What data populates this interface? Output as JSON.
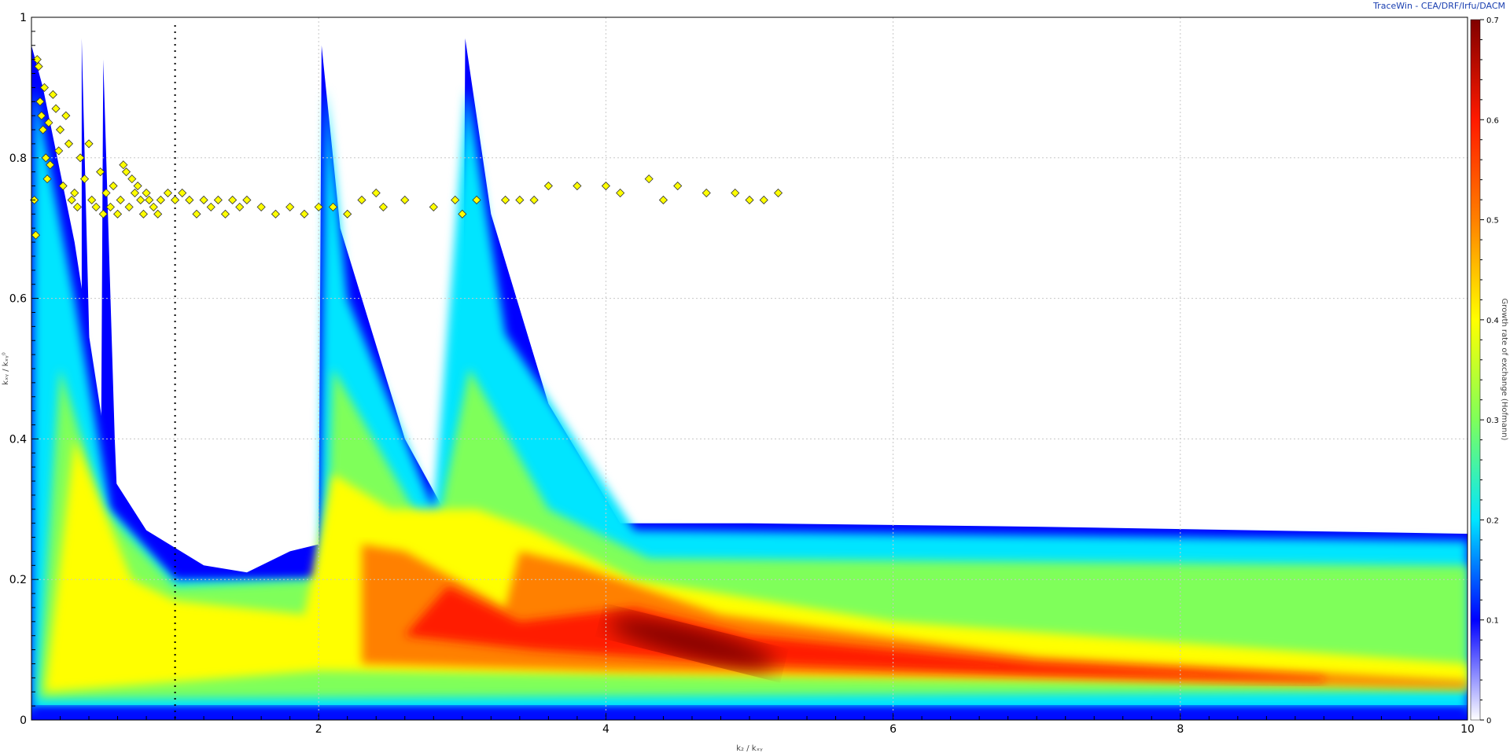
{
  "credit": "TraceWin - CEA/DRF/Irfu/DACM",
  "chart_data": {
    "type": "heatmap",
    "title": "",
    "xlabel": "k₂ / kₓᵧ",
    "ylabel": "kₓᵧ / kₓᵧ⁰",
    "colorbar_label": "Growth rate of exchange (Hofmann)",
    "xlim": [
      0,
      10
    ],
    "ylim": [
      0,
      1
    ],
    "clim": [
      0,
      0.7
    ],
    "x_ticks": [
      "2",
      "4",
      "6",
      "8",
      "10"
    ],
    "y_ticks": [
      "0",
      "0.2",
      "0.4",
      "0.6",
      "0.8",
      "1"
    ],
    "colorbar_ticks": [
      "0",
      "0.1",
      "0.2",
      "0.3",
      "0.4",
      "0.5",
      "0.6",
      "0.7"
    ],
    "grid": true,
    "colormap": [
      "#ffffff",
      "#0000ff",
      "#00e5ff",
      "#7fff5a",
      "#ffff00",
      "#ff8000",
      "#ff1a00",
      "#800000"
    ],
    "reference_line_x": 1.0,
    "markers": {
      "color": "#ffff00",
      "shape": "diamond",
      "points": [
        [
          0.02,
          0.74
        ],
        [
          0.03,
          0.69
        ],
        [
          0.04,
          0.94
        ],
        [
          0.05,
          0.93
        ],
        [
          0.06,
          0.88
        ],
        [
          0.07,
          0.86
        ],
        [
          0.08,
          0.84
        ],
        [
          0.09,
          0.9
        ],
        [
          0.1,
          0.8
        ],
        [
          0.11,
          0.77
        ],
        [
          0.12,
          0.85
        ],
        [
          0.13,
          0.79
        ],
        [
          0.15,
          0.89
        ],
        [
          0.17,
          0.87
        ],
        [
          0.19,
          0.81
        ],
        [
          0.2,
          0.84
        ],
        [
          0.22,
          0.76
        ],
        [
          0.24,
          0.86
        ],
        [
          0.26,
          0.82
        ],
        [
          0.28,
          0.74
        ],
        [
          0.3,
          0.75
        ],
        [
          0.32,
          0.73
        ],
        [
          0.34,
          0.8
        ],
        [
          0.37,
          0.77
        ],
        [
          0.4,
          0.82
        ],
        [
          0.42,
          0.74
        ],
        [
          0.45,
          0.73
        ],
        [
          0.48,
          0.78
        ],
        [
          0.5,
          0.72
        ],
        [
          0.52,
          0.75
        ],
        [
          0.55,
          0.73
        ],
        [
          0.57,
          0.76
        ],
        [
          0.6,
          0.72
        ],
        [
          0.62,
          0.74
        ],
        [
          0.64,
          0.79
        ],
        [
          0.66,
          0.78
        ],
        [
          0.68,
          0.73
        ],
        [
          0.7,
          0.77
        ],
        [
          0.72,
          0.75
        ],
        [
          0.74,
          0.76
        ],
        [
          0.76,
          0.74
        ],
        [
          0.78,
          0.72
        ],
        [
          0.8,
          0.75
        ],
        [
          0.82,
          0.74
        ],
        [
          0.85,
          0.73
        ],
        [
          0.88,
          0.72
        ],
        [
          0.9,
          0.74
        ],
        [
          0.95,
          0.75
        ],
        [
          1.0,
          0.74
        ],
        [
          1.05,
          0.75
        ],
        [
          1.1,
          0.74
        ],
        [
          1.15,
          0.72
        ],
        [
          1.2,
          0.74
        ],
        [
          1.25,
          0.73
        ],
        [
          1.3,
          0.74
        ],
        [
          1.35,
          0.72
        ],
        [
          1.4,
          0.74
        ],
        [
          1.45,
          0.73
        ],
        [
          1.5,
          0.74
        ],
        [
          1.6,
          0.73
        ],
        [
          1.7,
          0.72
        ],
        [
          1.8,
          0.73
        ],
        [
          1.9,
          0.72
        ],
        [
          2.0,
          0.73
        ],
        [
          2.1,
          0.73
        ],
        [
          2.2,
          0.72
        ],
        [
          2.3,
          0.74
        ],
        [
          2.4,
          0.75
        ],
        [
          2.45,
          0.73
        ],
        [
          2.6,
          0.74
        ],
        [
          2.8,
          0.73
        ],
        [
          2.95,
          0.74
        ],
        [
          3.0,
          0.72
        ],
        [
          3.1,
          0.74
        ],
        [
          3.3,
          0.74
        ],
        [
          3.4,
          0.74
        ],
        [
          3.5,
          0.74
        ],
        [
          3.6,
          0.76
        ],
        [
          3.8,
          0.76
        ],
        [
          4.0,
          0.76
        ],
        [
          4.1,
          0.75
        ],
        [
          4.3,
          0.77
        ],
        [
          4.4,
          0.74
        ],
        [
          4.5,
          0.76
        ],
        [
          4.7,
          0.75
        ],
        [
          4.9,
          0.75
        ],
        [
          5.0,
          0.74
        ],
        [
          5.1,
          0.74
        ],
        [
          5.2,
          0.75
        ]
      ]
    }
  }
}
